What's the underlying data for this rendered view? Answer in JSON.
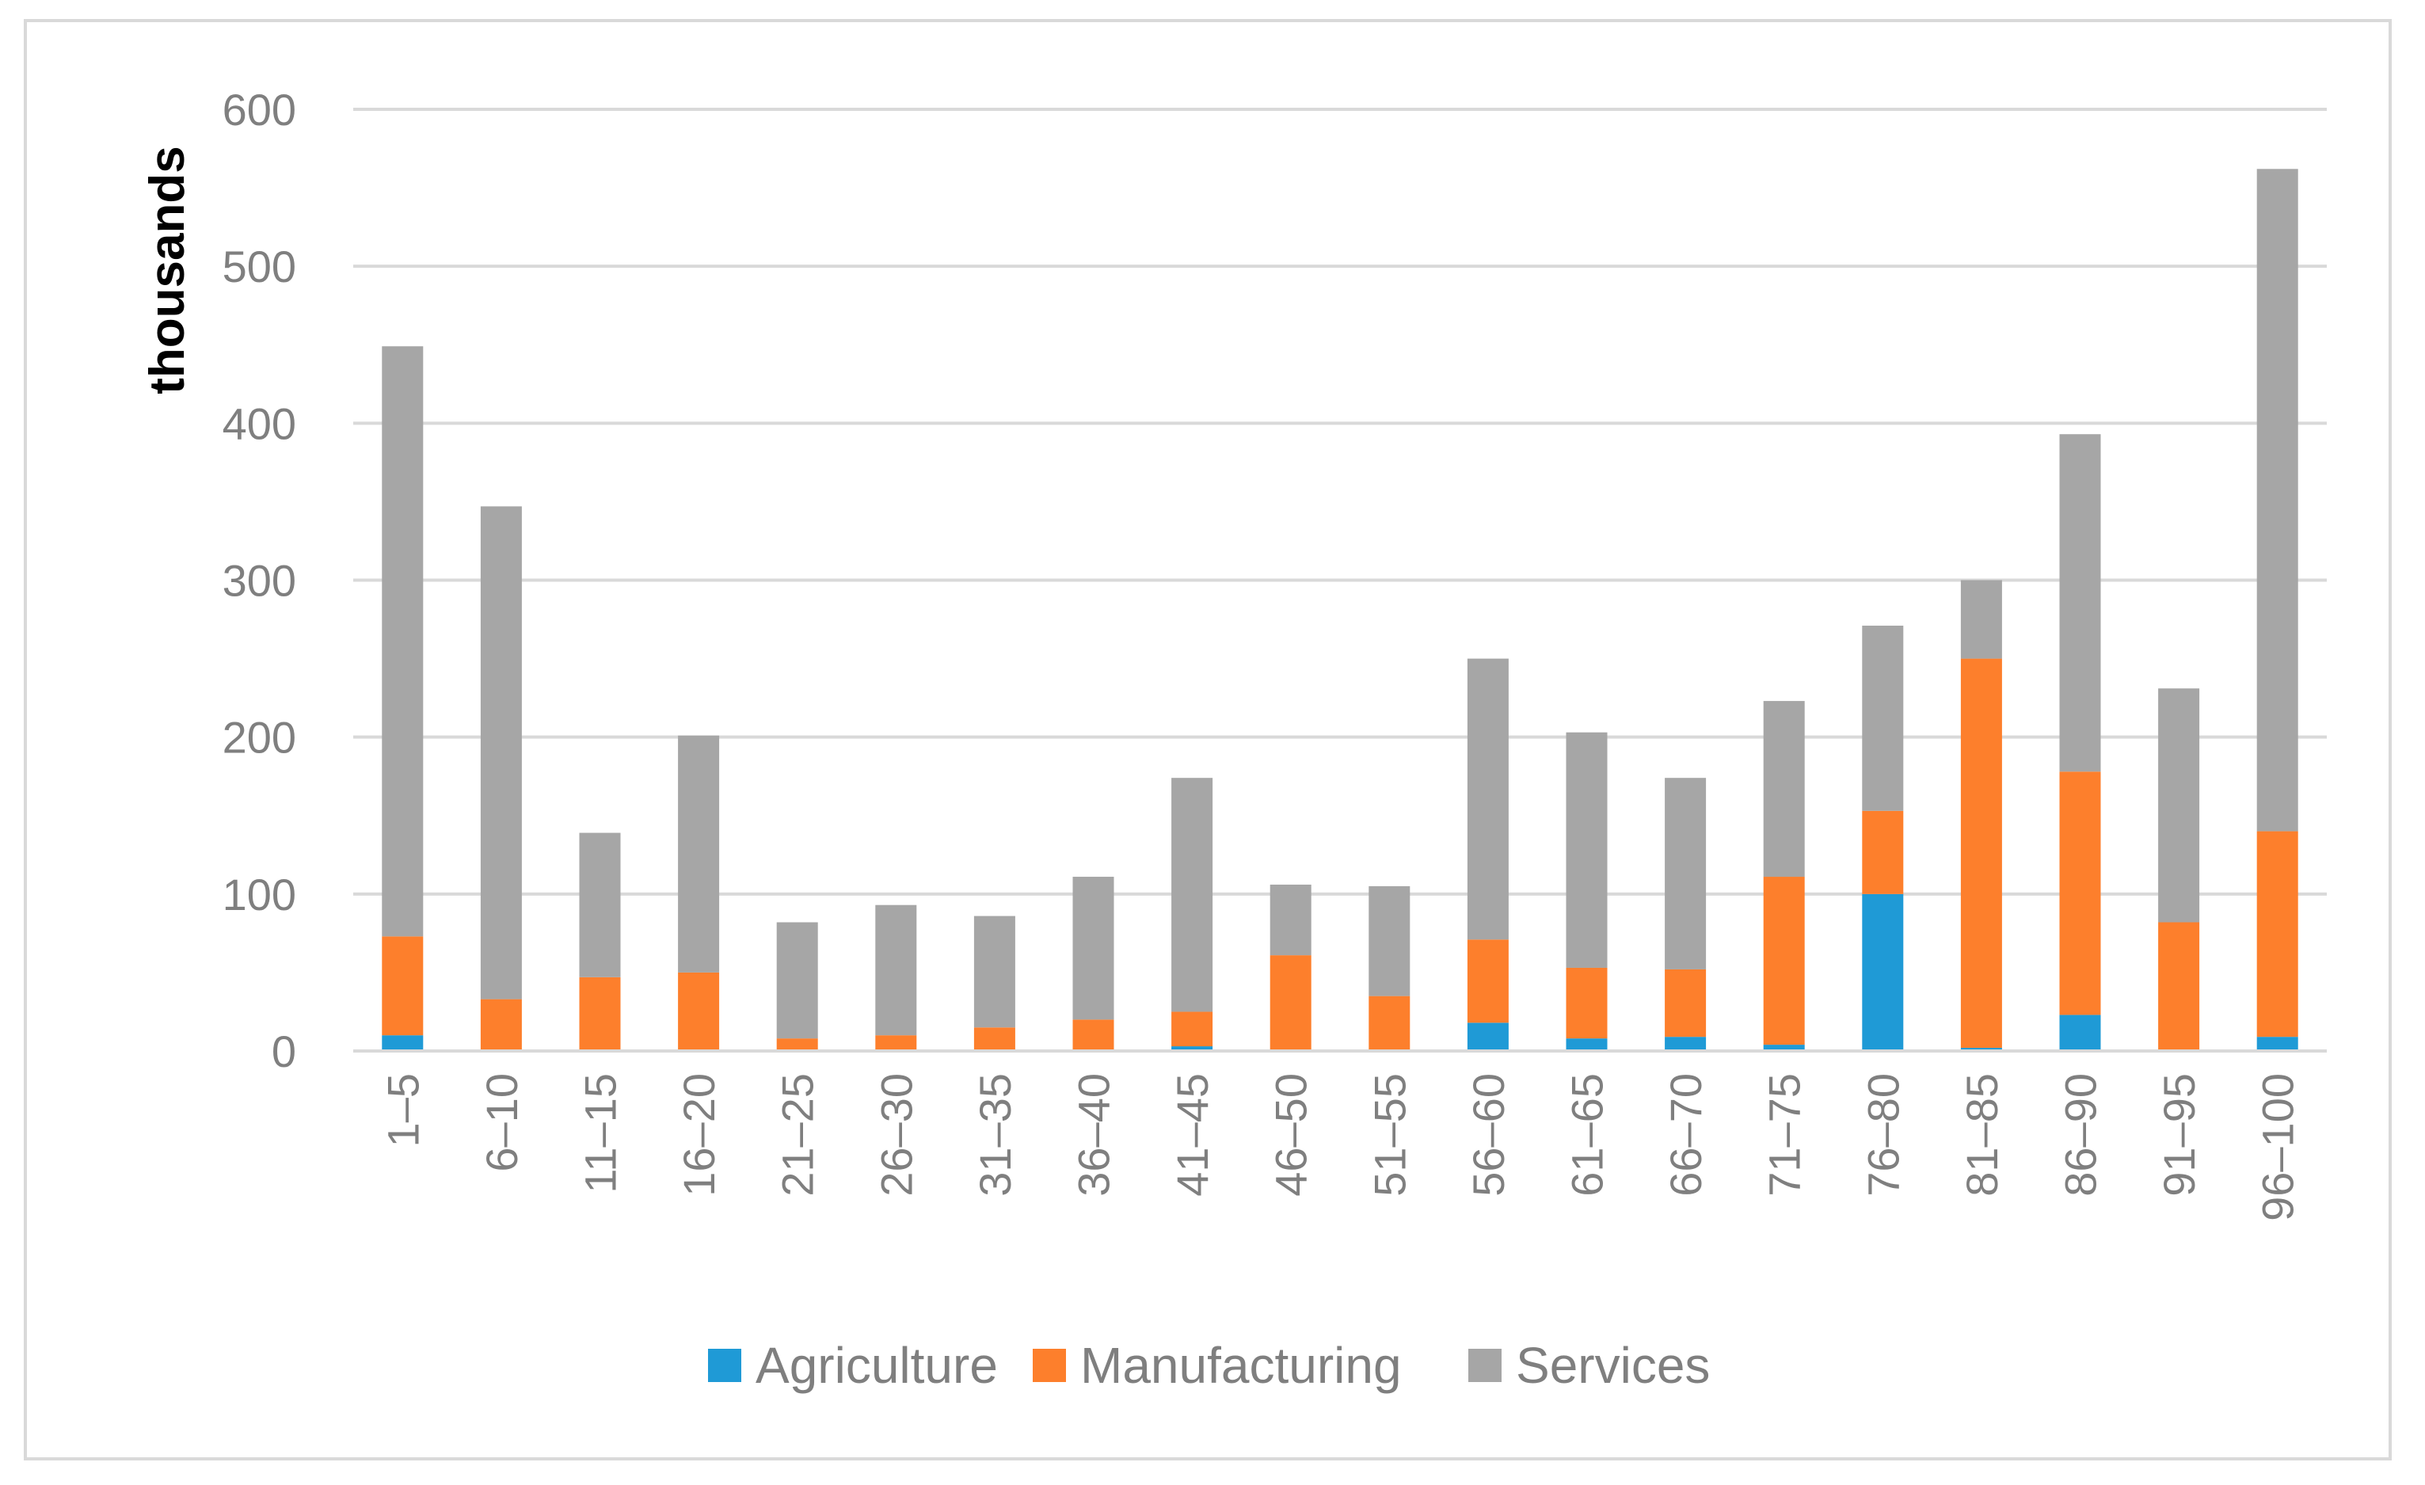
{
  "chart_data": {
    "type": "bar",
    "stacked": true,
    "title": "",
    "xlabel": "",
    "ylabel": "thousands",
    "ylim": [
      0,
      600
    ],
    "yticks": [
      0,
      100,
      200,
      300,
      400,
      500,
      600
    ],
    "grid": true,
    "legend_position": "bottom",
    "categories": [
      "1–5",
      "6–10",
      "11–15",
      "16–20",
      "21–25",
      "26–30",
      "31–35",
      "36–40",
      "41–45",
      "46–50",
      "51–55",
      "56–60",
      "61–65",
      "66–70",
      "71–75",
      "76–80",
      "81–85",
      "86–90",
      "91–95",
      "96–100"
    ],
    "series": [
      {
        "name": "Agriculture",
        "color": "#1f9ad6",
        "values": [
          10,
          0,
          0,
          0,
          0,
          0,
          0,
          0,
          3,
          0,
          0,
          18,
          8,
          9,
          4,
          100,
          2,
          23,
          0,
          9
        ]
      },
      {
        "name": "Manufacturing",
        "color": "#fd7f2c",
        "values": [
          63,
          33,
          47,
          50,
          8,
          10,
          15,
          20,
          22,
          61,
          35,
          53,
          45,
          43,
          107,
          53,
          248,
          155,
          82,
          131
        ]
      },
      {
        "name": "Services",
        "color": "#a6a6a6",
        "values": [
          376,
          314,
          92,
          151,
          74,
          83,
          71,
          91,
          149,
          45,
          70,
          179,
          150,
          122,
          112,
          118,
          50,
          215,
          149,
          422
        ]
      }
    ]
  }
}
